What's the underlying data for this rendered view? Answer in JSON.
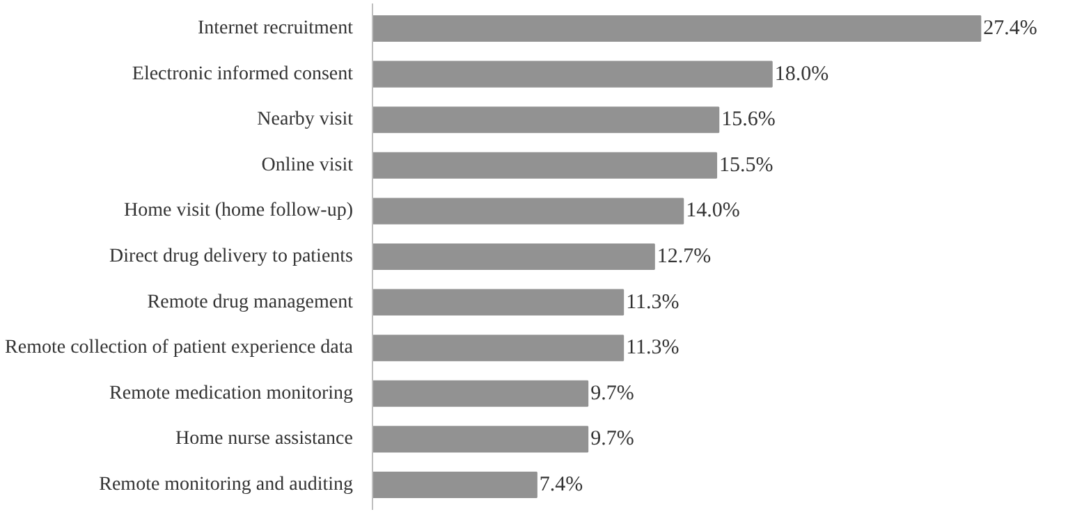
{
  "chart_data": {
    "type": "bar",
    "orientation": "horizontal",
    "categories": [
      "Internet recruitment",
      "Electronic informed consent",
      "Nearby visit",
      "Online visit",
      "Home visit (home follow-up)",
      "Direct drug delivery to patients",
      "Remote drug management",
      "Remote collection of patient experience data",
      "Remote medication monitoring",
      "Home nurse assistance",
      "Remote monitoring and auditing"
    ],
    "values": [
      27.4,
      18.0,
      15.6,
      15.5,
      14.0,
      12.7,
      11.3,
      11.3,
      9.7,
      9.7,
      7.4
    ],
    "value_labels": [
      "27.4%",
      "18.0%",
      "15.6%",
      "15.5%",
      "14.0%",
      "12.7%",
      "11.3%",
      "11.3%",
      "9.7%",
      "9.7%",
      "7.4%"
    ],
    "color": "#929292"
  }
}
